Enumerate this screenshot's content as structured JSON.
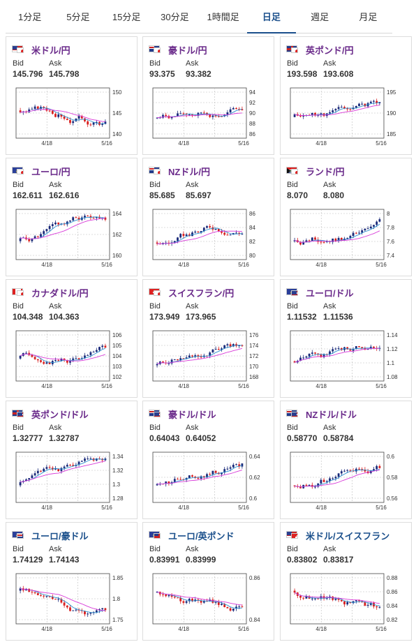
{
  "tabs": [
    {
      "label": "1分足",
      "active": false
    },
    {
      "label": "5分足",
      "active": false
    },
    {
      "label": "15分足",
      "active": false
    },
    {
      "label": "30分足",
      "active": false
    },
    {
      "label": "1時間足",
      "active": false
    },
    {
      "label": "日足",
      "active": true
    },
    {
      "label": "週足",
      "active": false
    },
    {
      "label": "月足",
      "active": false
    }
  ],
  "colors": {
    "up": "#1a2a7a",
    "down": "#d81f1f",
    "ma_short": "#2c8fcf",
    "ma_long": "#d838d8",
    "pair_name": "#6a2a8a",
    "pair_name_alt": "#1a4f8b"
  },
  "bid_label": "Bid",
  "ask_label": "Ask",
  "cards": [
    {
      "name": "米ドル/円",
      "flags": [
        "us",
        "jp"
      ],
      "bid": "145.796",
      "ask": "145.798",
      "yticks": [
        "150",
        "145",
        "140"
      ],
      "xticks": [
        "4/18",
        "5/16"
      ],
      "seed": 3,
      "trend": -0.2
    },
    {
      "name": "豪ドル/円",
      "flags": [
        "au",
        "jp"
      ],
      "bid": "93.375",
      "ask": "93.382",
      "yticks": [
        "94",
        "92",
        "90",
        "88",
        "86"
      ],
      "xticks": [
        "4/18",
        "5/16"
      ],
      "seed": 7,
      "trend": 0.4
    },
    {
      "name": "英ポンド/円",
      "flags": [
        "uk",
        "jp"
      ],
      "bid": "193.598",
      "ask": "193.608",
      "yticks": [
        "195",
        "190",
        "185"
      ],
      "xticks": [
        "4/18",
        "5/16"
      ],
      "seed": 11,
      "trend": 0.3
    },
    {
      "name": "ユーロ/円",
      "flags": [
        "eu",
        "jp"
      ],
      "bid": "162.611",
      "ask": "162.616",
      "yticks": [
        "164",
        "162",
        "160"
      ],
      "xticks": [
        "4/18",
        "5/16"
      ],
      "seed": 5,
      "trend": 0.5
    },
    {
      "name": "NZドル/円",
      "flags": [
        "nz",
        "jp"
      ],
      "bid": "85.685",
      "ask": "85.697",
      "yticks": [
        "86",
        "84",
        "82",
        "80"
      ],
      "xticks": [
        "4/18",
        "5/16"
      ],
      "seed": 9,
      "trend": 0.6
    },
    {
      "name": "ランド/円",
      "flags": [
        "za",
        "jp"
      ],
      "bid": "8.070",
      "ask": "8.080",
      "yticks": [
        "8",
        "7.8",
        "7.6",
        "7.4"
      ],
      "xticks": [
        "4/18",
        "5/16"
      ],
      "seed": 13,
      "trend": 0.5
    },
    {
      "name": "カナダドル/円",
      "flags": [
        "ca",
        "jp"
      ],
      "bid": "104.348",
      "ask": "104.363",
      "yticks": [
        "106",
        "105",
        "104",
        "103",
        "102"
      ],
      "xticks": [
        "4/18",
        "5/16"
      ],
      "seed": 17,
      "trend": 0.2
    },
    {
      "name": "スイスフラン/円",
      "flags": [
        "ch",
        "jp"
      ],
      "bid": "173.949",
      "ask": "173.965",
      "yticks": [
        "176",
        "174",
        "172",
        "170",
        "168"
      ],
      "xticks": [
        "4/18",
        "5/16"
      ],
      "seed": 19,
      "trend": 0.7
    },
    {
      "name": "ユーロ/ドル",
      "flags": [
        "eu",
        "us"
      ],
      "bid": "1.11532",
      "ask": "1.11536",
      "yticks": [
        "1.14",
        "1.12",
        "1.1",
        "1.08"
      ],
      "xticks": [
        "4/18",
        "5/16"
      ],
      "seed": 21,
      "trend": 0.4
    },
    {
      "name": "英ポンド/ドル",
      "flags": [
        "uk",
        "us"
      ],
      "bid": "1.32777",
      "ask": "1.32787",
      "yticks": [
        "1.34",
        "1.32",
        "1.3",
        "1.28"
      ],
      "xticks": [
        "4/18",
        "5/16"
      ],
      "seed": 23,
      "trend": 0.6
    },
    {
      "name": "豪ドル/ドル",
      "flags": [
        "au",
        "us"
      ],
      "bid": "0.64043",
      "ask": "0.64052",
      "yticks": [
        "0.64",
        "0.62",
        "0.6"
      ],
      "xticks": [
        "4/18",
        "5/16"
      ],
      "seed": 25,
      "trend": 0.6
    },
    {
      "name": "NZドル/ドル",
      "flags": [
        "nz",
        "us"
      ],
      "bid": "0.58770",
      "ask": "0.58784",
      "yticks": [
        "0.6",
        "0.58",
        "0.56"
      ],
      "xticks": [
        "4/18",
        "5/16"
      ],
      "seed": 27,
      "trend": 0.6
    },
    {
      "name": "ユーロ/豪ドル",
      "flags": [
        "eu",
        "au"
      ],
      "bid": "1.74129",
      "ask": "1.74143",
      "yticks": [
        "1.85",
        "1.8",
        "1.75"
      ],
      "xticks": [
        "4/18",
        "5/16"
      ],
      "seed": 29,
      "trend": -0.6
    },
    {
      "name": "ユーロ/英ポンド",
      "flags": [
        "eu",
        "uk"
      ],
      "bid": "0.83991",
      "ask": "0.83999",
      "yticks": [
        "0.86",
        "0.84"
      ],
      "xticks": [
        "4/18",
        "5/16"
      ],
      "seed": 31,
      "trend": -0.5
    },
    {
      "name": "米ドル/スイスフラン",
      "flags": [
        "us",
        "ch"
      ],
      "bid": "0.83802",
      "ask": "0.83817",
      "yticks": [
        "0.88",
        "0.86",
        "0.84",
        "0.82"
      ],
      "xticks": [
        "4/18",
        "5/16"
      ],
      "seed": 33,
      "trend": -0.6
    }
  ]
}
